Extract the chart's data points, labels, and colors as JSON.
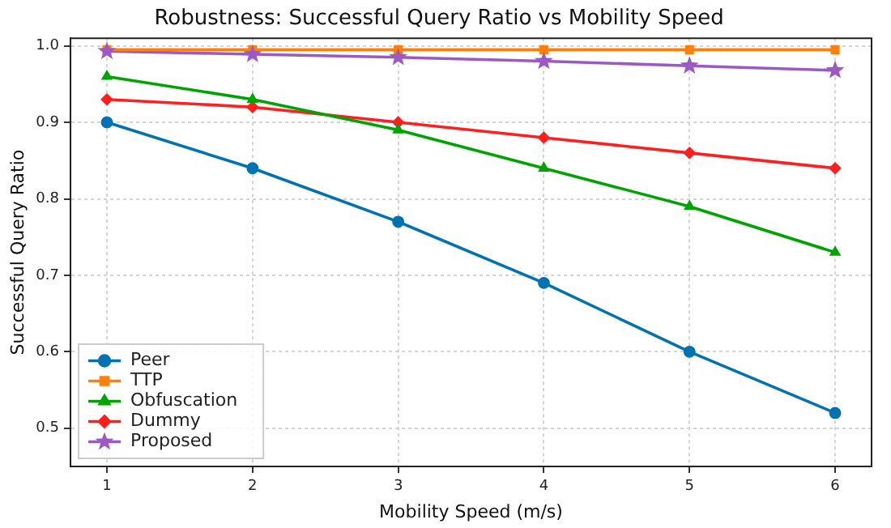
{
  "chart_data": {
    "type": "line",
    "title": "Robustness: Successful Query Ratio vs Mobility Speed",
    "xlabel": "Mobility Speed (m/s)",
    "ylabel": "Successful Query Ratio",
    "x": [
      1,
      2,
      3,
      4,
      5,
      6
    ],
    "series": [
      {
        "name": "Peer",
        "color": "#0072b2",
        "marker": "circle",
        "values": [
          0.9,
          0.84,
          0.77,
          0.69,
          0.6,
          0.52
        ]
      },
      {
        "name": "TTP",
        "color": "#ff7f0e",
        "marker": "square",
        "values": [
          0.995,
          0.995,
          0.995,
          0.995,
          0.995,
          0.995
        ]
      },
      {
        "name": "Obfuscation",
        "color": "#00a400",
        "marker": "triangle",
        "values": [
          0.96,
          0.93,
          0.89,
          0.84,
          0.79,
          0.73
        ]
      },
      {
        "name": "Dummy",
        "color": "#ff1f1f",
        "marker": "diamond",
        "values": [
          0.93,
          0.92,
          0.9,
          0.88,
          0.86,
          0.84
        ]
      },
      {
        "name": "Proposed",
        "color": "#9b59c6",
        "marker": "star",
        "values": [
          0.993,
          0.989,
          0.985,
          0.98,
          0.974,
          0.968
        ]
      }
    ],
    "xlim": [
      0.75,
      6.25
    ],
    "xticks": [
      1,
      2,
      3,
      4,
      5,
      6
    ],
    "ylim": [
      0.45,
      1.01
    ],
    "yticks": [
      0.5,
      0.6,
      0.7,
      0.8,
      0.9,
      {
        "value": 1,
        "label": "1.0"
      }
    ],
    "grid": true,
    "legend": "bottom left",
    "line_style": "solid"
  }
}
